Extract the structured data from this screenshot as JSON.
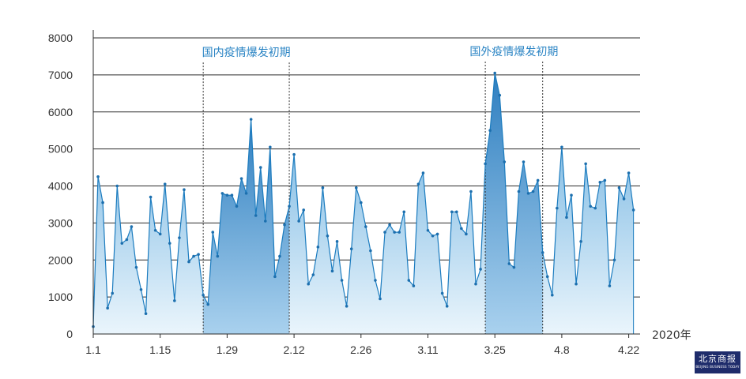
{
  "chart_data": {
    "type": "area",
    "x_unit_label": "2020年",
    "x_tick_labels": [
      "1.1",
      "1.15",
      "1.29",
      "2.12",
      "2.26",
      "3.11",
      "3.25",
      "4.8",
      "4.22"
    ],
    "ylim": [
      0,
      8000
    ],
    "y_ticks": [
      0,
      1000,
      2000,
      3000,
      4000,
      5000,
      6000,
      7000,
      8000
    ],
    "grid": true,
    "phases": [
      {
        "label": "国内疫情爆发初期",
        "start_index": 23,
        "end_index": 41
      },
      {
        "label": "国外疫情爆发初期",
        "start_index": 82,
        "end_index": 94
      }
    ],
    "x": [
      "1.1",
      "1.2",
      "1.3",
      "1.4",
      "1.5",
      "1.6",
      "1.7",
      "1.8",
      "1.9",
      "1.10",
      "1.11",
      "1.12",
      "1.13",
      "1.14",
      "1.15",
      "1.16",
      "1.17",
      "1.18",
      "1.19",
      "1.20",
      "1.21",
      "1.22",
      "1.23",
      "1.24",
      "1.25",
      "1.26",
      "1.27",
      "1.28",
      "1.29",
      "1.30",
      "1.31",
      "2.1",
      "2.2",
      "2.3",
      "2.4",
      "2.5",
      "2.6",
      "2.7",
      "2.8",
      "2.9",
      "2.10",
      "2.11",
      "2.12",
      "2.13",
      "2.14",
      "2.15",
      "2.16",
      "2.17",
      "2.18",
      "2.19",
      "2.20",
      "2.21",
      "2.22",
      "2.23",
      "2.24",
      "2.25",
      "2.26",
      "2.27",
      "2.28",
      "2.29",
      "3.1",
      "3.2",
      "3.3",
      "3.4",
      "3.5",
      "3.6",
      "3.7",
      "3.8",
      "3.9",
      "3.10",
      "3.11",
      "3.12",
      "3.13",
      "3.14",
      "3.15",
      "3.16",
      "3.17",
      "3.18",
      "3.19",
      "3.20",
      "3.21",
      "3.22",
      "3.23",
      "3.24",
      "3.25",
      "3.26",
      "3.27",
      "3.28",
      "3.29",
      "3.30",
      "3.31",
      "4.1",
      "4.2",
      "4.3",
      "4.4",
      "4.5",
      "4.6",
      "4.7",
      "4.8",
      "4.9",
      "4.10",
      "4.11",
      "4.12",
      "4.13",
      "4.14",
      "4.15",
      "4.16",
      "4.17",
      "4.18",
      "4.19",
      "4.20",
      "4.21",
      "4.22",
      "4.23"
    ],
    "values": [
      200,
      4250,
      3550,
      700,
      1100,
      4000,
      2450,
      2550,
      2900,
      1800,
      1200,
      550,
      3700,
      2800,
      2700,
      4050,
      2450,
      900,
      2600,
      3900,
      1950,
      2100,
      2150,
      1050,
      800,
      2750,
      2100,
      3800,
      3750,
      3750,
      3450,
      4200,
      3800,
      5800,
      3200,
      4500,
      3050,
      5050,
      1550,
      2100,
      2950,
      3450,
      4850,
      3050,
      3350,
      1350,
      1600,
      2350,
      3950,
      2650,
      1700,
      2500,
      1450,
      750,
      2300,
      3950,
      3550,
      2900,
      2250,
      1450,
      950,
      2750,
      2950,
      2750,
      2750,
      3300,
      1450,
      1300,
      4050,
      4350,
      2800,
      2650,
      2700,
      1100,
      750,
      3300,
      3300,
      2850,
      2700,
      3850,
      1350,
      1750,
      4600,
      5500,
      7050,
      6450,
      4650,
      1900,
      1800,
      3850,
      4650,
      3800,
      3850,
      4150,
      2200,
      1550,
      1050,
      3400,
      5050,
      3150,
      3750,
      1350,
      2500,
      4600,
      3450,
      3400,
      4100,
      4150,
      1300,
      2000,
      3950,
      3650,
      4350,
      3350
    ]
  },
  "logo": {
    "cn": "北京商报",
    "en": "BEIJING BUSINESS TODAY"
  }
}
